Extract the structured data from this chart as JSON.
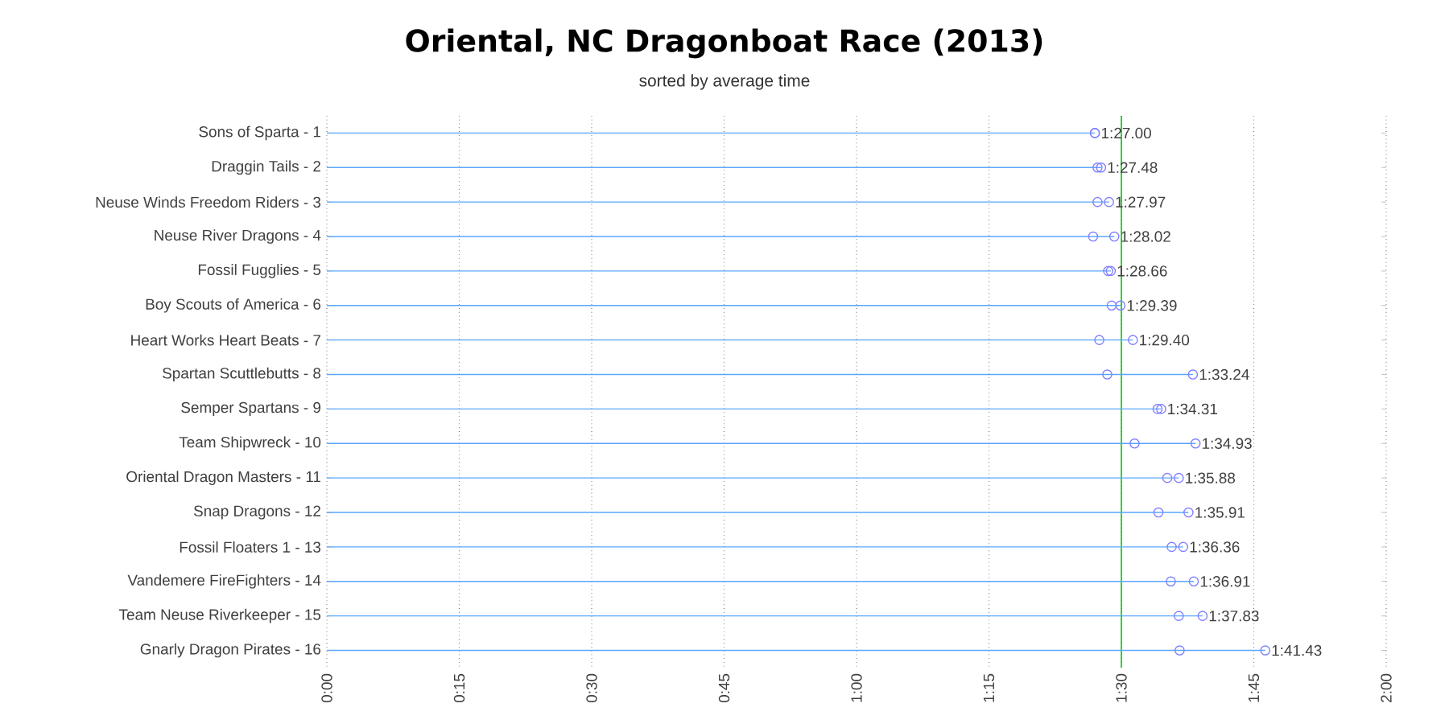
{
  "chart_data": {
    "type": "lollipop",
    "title": "Oriental, NC Dragonboat Race (2013)",
    "subtitle": "sorted by average time",
    "orientation": "horizontal",
    "categories": [
      "Sons of Sparta - 1",
      "Draggin Tails - 2",
      "Neuse Winds Freedom Riders - 3",
      "Neuse River Dragons - 4",
      "Fossil Fugglies - 5",
      "Boy Scouts of America - 6",
      "Heart Works Heart Beats - 7",
      "Spartan Scuttlebutts - 8",
      "Semper Spartans - 9",
      "Team Shipwreck - 10",
      "Oriental Dragon Masters - 11",
      "Snap Dragons - 12",
      "Fossil Floaters 1 - 13",
      "Vandemere FireFighters - 14",
      "Team Neuse Riverkeeper - 15",
      "Gnarly Dragon Pirates - 16"
    ],
    "series": [
      {
        "type": "lollipop",
        "color": "#8080ff",
        "values": [
          87.0,
          87.7,
          88.6,
          89.2,
          88.8,
          89.9,
          91.3,
          98.1,
          94.5,
          98.4,
          96.5,
          97.6,
          97.0,
          98.2,
          99.2,
          106.3
        ]
      },
      {
        "type": "scatter",
        "color": "#8080ff",
        "values": [
          87.0,
          87.3,
          87.3,
          86.8,
          88.5,
          88.9,
          87.5,
          88.4,
          94.1,
          91.5,
          95.2,
          94.2,
          95.7,
          95.6,
          96.5,
          96.6
        ]
      }
    ],
    "xlim": [
      0,
      120
    ],
    "xticks": [
      {
        "value": 0,
        "label": "0:00"
      },
      {
        "value": 15,
        "label": "0:15"
      },
      {
        "value": 30,
        "label": "0:30"
      },
      {
        "value": 45,
        "label": "0:45"
      },
      {
        "value": 60,
        "label": "1:00"
      },
      {
        "value": 75,
        "label": "1:15"
      },
      {
        "value": 90,
        "label": "1:30"
      },
      {
        "value": 105,
        "label": "1:45"
      },
      {
        "value": 120,
        "label": "2:00"
      }
    ],
    "grid": "x",
    "marker": "circle",
    "ref_lines": [
      {
        "axis": "x",
        "value": 90,
        "color": "#00cc00"
      }
    ],
    "annotations": [
      "1:27.00",
      "1:27.48",
      "1:27.97",
      "1:28.02",
      "1:28.66",
      "1:29.39",
      "1:29.40",
      "1:33.24",
      "1:34.31",
      "1:34.93",
      "1:35.88",
      "1:35.91",
      "1:36.36",
      "1:36.91",
      "1:37.83",
      "1:41.43"
    ]
  }
}
